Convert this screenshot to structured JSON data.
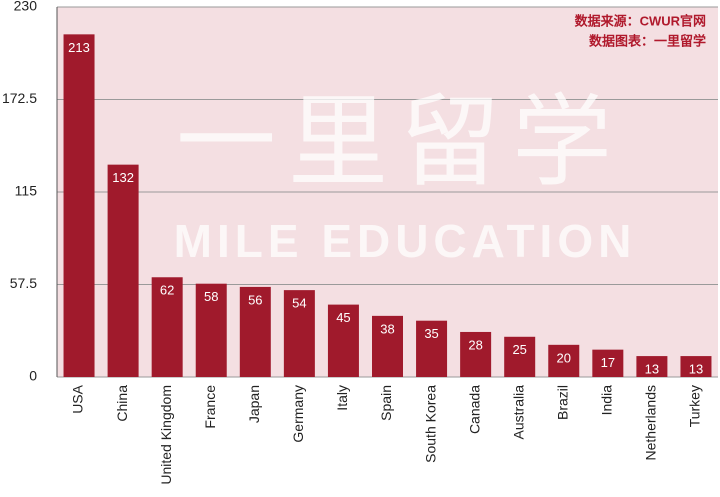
{
  "chart_data": {
    "type": "bar",
    "categories": [
      "USA",
      "China",
      "United Kingdom",
      "France",
      "Japan",
      "Germany",
      "Italy",
      "Spain",
      "South Korea",
      "Canada",
      "Australia",
      "Brazil",
      "India",
      "Netherlands",
      "Turkey"
    ],
    "values": [
      213,
      132,
      62,
      58,
      56,
      54,
      45,
      38,
      35,
      28,
      25,
      20,
      17,
      13,
      13
    ],
    "color": "#a01a2c",
    "ylim": [
      0,
      230
    ],
    "yticks": [
      0,
      57.5,
      115,
      172.5,
      230
    ],
    "grid": true,
    "annotations": [
      "数据来源：CWUR官网",
      "数据图表：一里留学"
    ],
    "watermark": [
      "一里留学",
      "MILE EDUCATION"
    ]
  }
}
